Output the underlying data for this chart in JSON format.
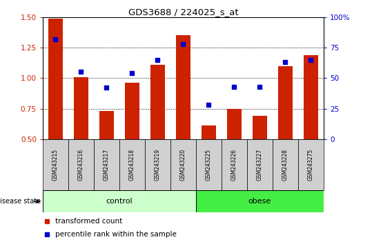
{
  "title": "GDS3688 / 224025_s_at",
  "samples": [
    "GSM243215",
    "GSM243216",
    "GSM243217",
    "GSM243218",
    "GSM243219",
    "GSM243220",
    "GSM243225",
    "GSM243226",
    "GSM243227",
    "GSM243228",
    "GSM243275"
  ],
  "bar_values": [
    1.49,
    1.01,
    0.73,
    0.96,
    1.11,
    1.35,
    0.61,
    0.75,
    0.69,
    1.1,
    1.19
  ],
  "dot_values": [
    82,
    55,
    42,
    54,
    65,
    78,
    28,
    43,
    43,
    63,
    65
  ],
  "bar_color": "#cc2200",
  "dot_color": "#0000cc",
  "ylim_left": [
    0.5,
    1.5
  ],
  "ylim_right": [
    0,
    100
  ],
  "yticks_left": [
    0.5,
    0.75,
    1.0,
    1.25,
    1.5
  ],
  "yticks_right": [
    0,
    25,
    50,
    75,
    100
  ],
  "ytick_labels_right": [
    "0",
    "25",
    "50",
    "75",
    "100%"
  ],
  "groups": {
    "control": [
      0,
      1,
      2,
      3,
      4,
      5
    ],
    "obese": [
      6,
      7,
      8,
      9,
      10
    ]
  },
  "control_color": "#ccffcc",
  "obese_color": "#44ee44",
  "legend_items": [
    {
      "label": "transformed count",
      "color": "#cc2200"
    },
    {
      "label": "percentile rank within the sample",
      "color": "#0000cc"
    }
  ],
  "bar_width": 0.55,
  "grid_yticks": [
    0.75,
    1.0,
    1.25
  ]
}
